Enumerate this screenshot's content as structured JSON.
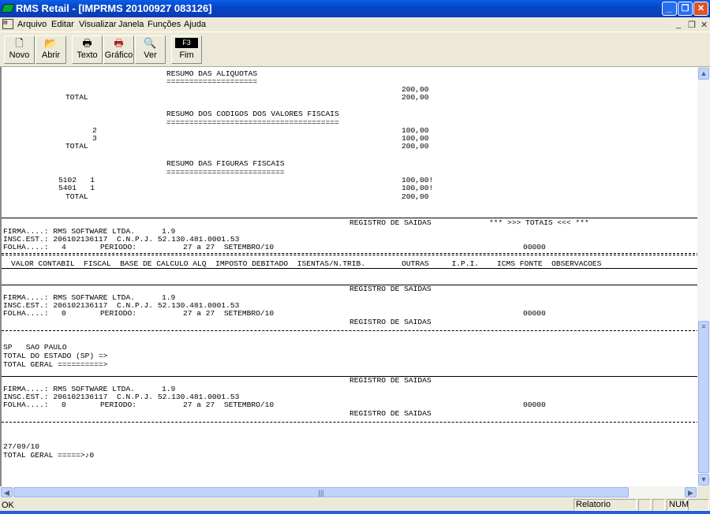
{
  "window": {
    "title": "RMS Retail - [IMPRMS 20100927 083126]",
    "minimize": "_",
    "maximize": "❐",
    "close": "✕"
  },
  "menu": [
    "Arquivo",
    "Editar",
    "Visualizar",
    "Janela",
    "Funções",
    "Ajuda"
  ],
  "mdi_controls": [
    "_",
    "❐",
    "✕"
  ],
  "toolbar": [
    {
      "label": "Novo",
      "icon": "new-document-icon",
      "glyph": "🗋"
    },
    {
      "label": "Abrir",
      "icon": "open-folder-icon",
      "glyph": "📂"
    },
    {
      "label": "Texto",
      "icon": "printer-icon",
      "glyph": "🖶"
    },
    {
      "label": "Gráfico",
      "icon": "color-printer-icon",
      "glyph": "🖶"
    },
    {
      "label": "Ver",
      "icon": "preview-magnifier-icon",
      "glyph": "🔍"
    },
    {
      "label": "Fim",
      "icon": "f3-key-icon",
      "glyph": "F3"
    }
  ],
  "report": {
    "aliquotas": {
      "title": "RESUMO DAS ALIQUOTAS",
      "underline": "====================",
      "value": "200,00",
      "total_label": "TOTAL",
      "total": "200,00"
    },
    "codigos": {
      "title": "RESUMO DOS CODIGOS DOS VALORES FISCAIS",
      "underline": "======================================",
      "rows": [
        {
          "code": "2",
          "value": "100,00"
        },
        {
          "code": "3",
          "value": "100,00"
        }
      ],
      "total_label": "TOTAL",
      "total": "200,00"
    },
    "figuras": {
      "title": "RESUMO DAS FIGURAS FISCAIS",
      "underline": "==========================",
      "rows": [
        {
          "code": "5102   1",
          "value": "100,00!"
        },
        {
          "code": "5401   1",
          "value": "100,00!"
        }
      ],
      "total_label": "TOTAL",
      "total": "200,00"
    },
    "registro": "REGISTRO DE SAIDAS",
    "totais": "*** >>> TOTAIS <<< ***",
    "firma": "FIRMA....: RMS SOFTWARE LTDA.",
    "version": "1.9",
    "insc": "INSC.EST.: 206102136117",
    "cnpj": "C.N.P.J. 52.130.481.0001.53",
    "folha_label": "FOLHA....:",
    "periodo_label": "PERIODO:",
    "periodo": "27 a 27  SETEMBRO/10",
    "contador": "00000",
    "folhas": [
      "4",
      "0",
      "0"
    ],
    "columns": "VALOR CONTABIL  FISCAL  BASE DE CALCULO ALQ  IMPOSTO DEBITADO  ISENTAS/N.TRIB.        OUTRAS     I.P.I.    ICMS FONTE  OBSERVACOES",
    "estado": "SP   SAO PAULO",
    "total_estado": "TOTAL DO ESTADO (SP) =>",
    "total_geral": "TOTAL GERAL ==========>",
    "data": "27/09/10",
    "total_geral_final": "TOTAL GERAL =====>♪0"
  },
  "statusbar": {
    "message": "OK",
    "mode": "Relatorio",
    "num": "NUM"
  }
}
